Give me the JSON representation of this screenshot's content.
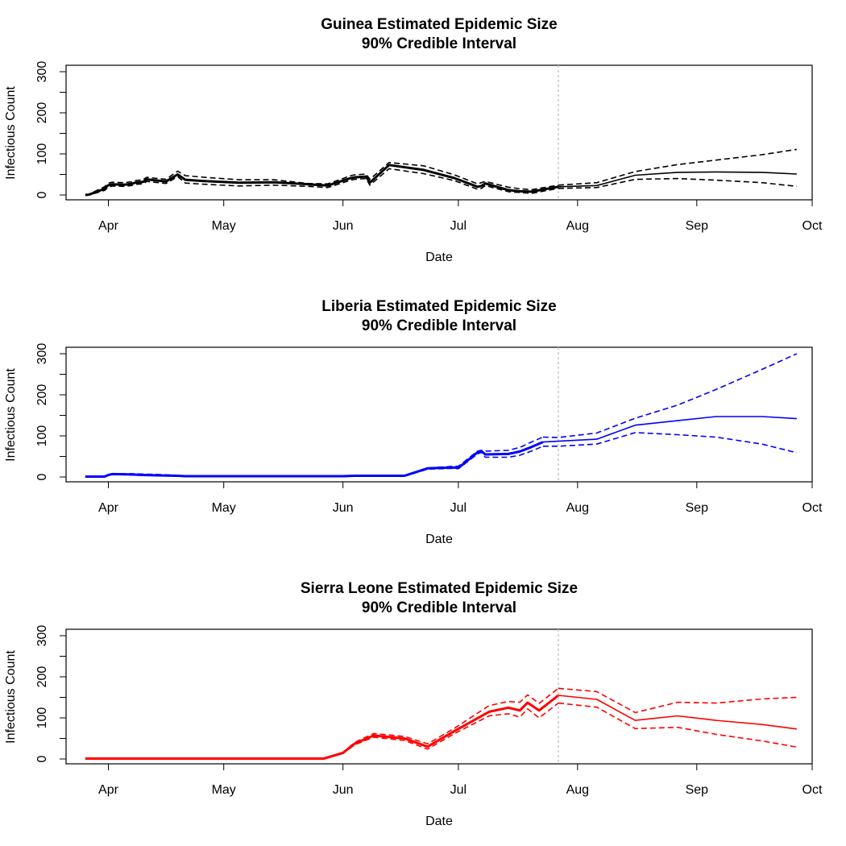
{
  "chart_data": [
    {
      "type": "line",
      "title": "Guinea Estimated Epidemic Size",
      "subtitle": "90% Credible Interval",
      "xlabel": "Date",
      "ylabel": "Infectious Count",
      "color": "#000000",
      "xlim": [
        "2014-03-21",
        "2014-10-01"
      ],
      "ylim": [
        0,
        300
      ],
      "x_ticks": [
        "Apr",
        "May",
        "Jun",
        "Jul",
        "Aug",
        "Sep",
        "Oct"
      ],
      "x_tick_dates": [
        "2014-04-01",
        "2014-05-01",
        "2014-06-01",
        "2014-07-01",
        "2014-08-01",
        "2014-09-01",
        "2014-10-01"
      ],
      "y_ticks": [
        0,
        100,
        200,
        300
      ],
      "vline_date": "2014-07-27",
      "thick_until": "2014-07-27",
      "series": [
        {
          "role": "median",
          "x": [
            "2014-03-26",
            "2014-03-27",
            "2014-03-31",
            "2014-04-01",
            "2014-04-02",
            "2014-04-05",
            "2014-04-07",
            "2014-04-08",
            "2014-04-10",
            "2014-04-11",
            "2014-04-16",
            "2014-04-19",
            "2014-04-21",
            "2014-04-26",
            "2014-05-05",
            "2014-05-14",
            "2014-05-23",
            "2014-05-28",
            "2014-06-01",
            "2014-06-03",
            "2014-06-04",
            "2014-06-07",
            "2014-06-08",
            "2014-06-13",
            "2014-06-22",
            "2014-06-30",
            "2014-07-06",
            "2014-07-07",
            "2014-07-08",
            "2014-07-14",
            "2014-07-17",
            "2014-07-20",
            "2014-07-27",
            "2014-08-06",
            "2014-08-16",
            "2014-08-27",
            "2014-09-06",
            "2014-09-18",
            "2014-09-27"
          ],
          "y": [
            0,
            1,
            15,
            24,
            26,
            25,
            27,
            30,
            32,
            38,
            33,
            50,
            37,
            34,
            30,
            31,
            26,
            23,
            35,
            41,
            43,
            45,
            30,
            73,
            61,
            41,
            20,
            22,
            28,
            12,
            9,
            8,
            20,
            23,
            48,
            55,
            56,
            55,
            51
          ]
        },
        {
          "role": "upper",
          "x": [
            "2014-03-26",
            "2014-03-27",
            "2014-03-31",
            "2014-04-01",
            "2014-04-02",
            "2014-04-05",
            "2014-04-07",
            "2014-04-08",
            "2014-04-10",
            "2014-04-11",
            "2014-04-16",
            "2014-04-19",
            "2014-04-21",
            "2014-04-26",
            "2014-05-05",
            "2014-05-14",
            "2014-05-23",
            "2014-05-28",
            "2014-06-01",
            "2014-06-03",
            "2014-06-04",
            "2014-06-07",
            "2014-06-08",
            "2014-06-13",
            "2014-06-22",
            "2014-06-30",
            "2014-07-06",
            "2014-07-07",
            "2014-07-08",
            "2014-07-14",
            "2014-07-17",
            "2014-07-20",
            "2014-07-27",
            "2014-08-06",
            "2014-08-16",
            "2014-08-27",
            "2014-09-06",
            "2014-09-18",
            "2014-09-27"
          ],
          "y": [
            1,
            2,
            20,
            29,
            31,
            30,
            32,
            35,
            37,
            43,
            38,
            58,
            47,
            43,
            37,
            37,
            28,
            27,
            40,
            47,
            49,
            51,
            38,
            79,
            71,
            49,
            27,
            30,
            33,
            19,
            15,
            13,
            24,
            30,
            57,
            74,
            85,
            98,
            111
          ]
        },
        {
          "role": "lower",
          "x": [
            "2014-03-26",
            "2014-03-27",
            "2014-03-31",
            "2014-04-01",
            "2014-04-02",
            "2014-04-05",
            "2014-04-07",
            "2014-04-08",
            "2014-04-10",
            "2014-04-11",
            "2014-04-16",
            "2014-04-19",
            "2014-04-21",
            "2014-04-26",
            "2014-05-05",
            "2014-05-14",
            "2014-05-23",
            "2014-05-28",
            "2014-06-01",
            "2014-06-03",
            "2014-06-04",
            "2014-06-07",
            "2014-06-08",
            "2014-06-13",
            "2014-06-22",
            "2014-06-30",
            "2014-07-06",
            "2014-07-07",
            "2014-07-08",
            "2014-07-14",
            "2014-07-17",
            "2014-07-20",
            "2014-07-27",
            "2014-08-06",
            "2014-08-16",
            "2014-08-27",
            "2014-09-06",
            "2014-09-18",
            "2014-09-27"
          ],
          "y": [
            0,
            0,
            11,
            19,
            22,
            21,
            23,
            26,
            27,
            33,
            28,
            45,
            29,
            26,
            22,
            24,
            21,
            18,
            30,
            36,
            38,
            40,
            24,
            64,
            52,
            35,
            14,
            16,
            23,
            8,
            6,
            4,
            16,
            18,
            38,
            40,
            36,
            30,
            21
          ]
        }
      ]
    },
    {
      "type": "line",
      "title": "Liberia Estimated Epidemic Size",
      "subtitle": "90% Credible Interval",
      "xlabel": "Date",
      "ylabel": "Infectious Count",
      "color": "#0000ff",
      "xlim": [
        "2014-03-21",
        "2014-10-01"
      ],
      "ylim": [
        0,
        300
      ],
      "x_ticks": [
        "Apr",
        "May",
        "Jun",
        "Jul",
        "Aug",
        "Sep",
        "Oct"
      ],
      "x_tick_dates": [
        "2014-04-01",
        "2014-05-01",
        "2014-06-01",
        "2014-07-01",
        "2014-08-01",
        "2014-09-01",
        "2014-10-01"
      ],
      "y_ticks": [
        0,
        100,
        200,
        300
      ],
      "vline_date": "2014-07-27",
      "thick_until": "2014-07-23",
      "series": [
        {
          "role": "median",
          "x": [
            "2014-03-26",
            "2014-03-31",
            "2014-04-01",
            "2014-04-02",
            "2014-04-07",
            "2014-04-10",
            "2014-04-14",
            "2014-04-19",
            "2014-04-21",
            "2014-05-14",
            "2014-06-01",
            "2014-06-04",
            "2014-06-17",
            "2014-06-23",
            "2014-06-26",
            "2014-06-30",
            "2014-07-01",
            "2014-07-06",
            "2014-07-07",
            "2014-07-08",
            "2014-07-14",
            "2014-07-17",
            "2014-07-20",
            "2014-07-23",
            "2014-07-27",
            "2014-08-06",
            "2014-08-16",
            "2014-08-27",
            "2014-09-06",
            "2014-09-18",
            "2014-09-27"
          ],
          "y": [
            1,
            1,
            5,
            7,
            6,
            5,
            4,
            3,
            2,
            2,
            2,
            3,
            3,
            21,
            22,
            23,
            22,
            60,
            63,
            55,
            56,
            62,
            73,
            85,
            87,
            92,
            126,
            137,
            147,
            147,
            142
          ]
        },
        {
          "role": "upper",
          "x": [
            "2014-03-26",
            "2014-03-31",
            "2014-04-01",
            "2014-04-02",
            "2014-04-07",
            "2014-04-10",
            "2014-04-14",
            "2014-04-19",
            "2014-04-21",
            "2014-05-14",
            "2014-06-01",
            "2014-06-04",
            "2014-06-17",
            "2014-06-23",
            "2014-06-26",
            "2014-06-30",
            "2014-07-01",
            "2014-07-06",
            "2014-07-07",
            "2014-07-08",
            "2014-07-14",
            "2014-07-17",
            "2014-07-20",
            "2014-07-23",
            "2014-07-27",
            "2014-08-06",
            "2014-08-16",
            "2014-08-27",
            "2014-09-06",
            "2014-09-18",
            "2014-09-27"
          ],
          "y": [
            1,
            1,
            6,
            8,
            8,
            7,
            6,
            4,
            2,
            2,
            2,
            3,
            3,
            22,
            24,
            26,
            26,
            63,
            65,
            63,
            65,
            72,
            85,
            97,
            96,
            107,
            143,
            175,
            213,
            262,
            300
          ]
        },
        {
          "role": "lower",
          "x": [
            "2014-03-26",
            "2014-03-31",
            "2014-04-01",
            "2014-04-02",
            "2014-04-07",
            "2014-04-10",
            "2014-04-14",
            "2014-04-19",
            "2014-04-21",
            "2014-05-14",
            "2014-06-01",
            "2014-06-04",
            "2014-06-17",
            "2014-06-23",
            "2014-06-26",
            "2014-06-30",
            "2014-07-01",
            "2014-07-06",
            "2014-07-07",
            "2014-07-08",
            "2014-07-14",
            "2014-07-17",
            "2014-07-20",
            "2014-07-23",
            "2014-07-27",
            "2014-08-06",
            "2014-08-16",
            "2014-08-27",
            "2014-09-06",
            "2014-09-18",
            "2014-09-27"
          ],
          "y": [
            0,
            0,
            4,
            6,
            5,
            4,
            3,
            2,
            1,
            1,
            1,
            2,
            2,
            19,
            20,
            21,
            20,
            56,
            60,
            48,
            48,
            53,
            63,
            75,
            75,
            80,
            108,
            103,
            97,
            80,
            59
          ]
        }
      ]
    },
    {
      "type": "line",
      "title": "Sierra Leone Estimated Epidemic Size",
      "subtitle": "90% Credible Interval",
      "xlabel": "Date",
      "ylabel": "Infectious Count",
      "color": "#ff0000",
      "xlim": [
        "2014-03-21",
        "2014-10-01"
      ],
      "ylim": [
        0,
        300
      ],
      "x_ticks": [
        "Apr",
        "May",
        "Jun",
        "Jul",
        "Aug",
        "Sep",
        "Oct"
      ],
      "x_tick_dates": [
        "2014-04-01",
        "2014-05-01",
        "2014-06-01",
        "2014-07-01",
        "2014-08-01",
        "2014-09-01",
        "2014-10-01"
      ],
      "y_ticks": [
        0,
        100,
        200,
        300
      ],
      "vline_date": "2014-07-27",
      "thick_until": "2014-07-27",
      "series": [
        {
          "role": "median",
          "x": [
            "2014-03-26",
            "2014-05-27",
            "2014-06-01",
            "2014-06-04",
            "2014-06-06",
            "2014-06-09",
            "2014-06-17",
            "2014-06-23",
            "2014-06-30",
            "2014-07-09",
            "2014-07-14",
            "2014-07-17",
            "2014-07-19",
            "2014-07-22",
            "2014-07-27",
            "2014-08-06",
            "2014-08-16",
            "2014-08-27",
            "2014-09-06",
            "2014-09-18",
            "2014-09-27"
          ],
          "y": [
            1,
            1,
            15,
            37,
            45,
            57,
            50,
            30,
            68,
            115,
            125,
            118,
            137,
            118,
            155,
            145,
            94,
            105,
            94,
            84,
            73
          ]
        },
        {
          "role": "upper",
          "x": [
            "2014-03-26",
            "2014-05-27",
            "2014-06-01",
            "2014-06-04",
            "2014-06-06",
            "2014-06-09",
            "2014-06-17",
            "2014-06-23",
            "2014-06-30",
            "2014-07-09",
            "2014-07-14",
            "2014-07-17",
            "2014-07-19",
            "2014-07-22",
            "2014-07-27",
            "2014-08-06",
            "2014-08-16",
            "2014-08-27",
            "2014-09-06",
            "2014-09-18",
            "2014-09-27"
          ],
          "y": [
            1,
            1,
            16,
            40,
            49,
            62,
            55,
            37,
            75,
            130,
            140,
            138,
            156,
            135,
            172,
            164,
            113,
            138,
            136,
            146,
            150
          ]
        },
        {
          "role": "lower",
          "x": [
            "2014-03-26",
            "2014-05-27",
            "2014-06-01",
            "2014-06-04",
            "2014-06-06",
            "2014-06-09",
            "2014-06-17",
            "2014-06-23",
            "2014-06-30",
            "2014-07-09",
            "2014-07-14",
            "2014-07-17",
            "2014-07-19",
            "2014-07-22",
            "2014-07-27",
            "2014-08-06",
            "2014-08-16",
            "2014-08-27",
            "2014-09-06",
            "2014-09-18",
            "2014-09-27"
          ],
          "y": [
            0,
            0,
            14,
            34,
            42,
            53,
            45,
            24,
            62,
            105,
            110,
            102,
            122,
            100,
            136,
            126,
            74,
            77,
            60,
            44,
            29
          ]
        }
      ]
    }
  ]
}
